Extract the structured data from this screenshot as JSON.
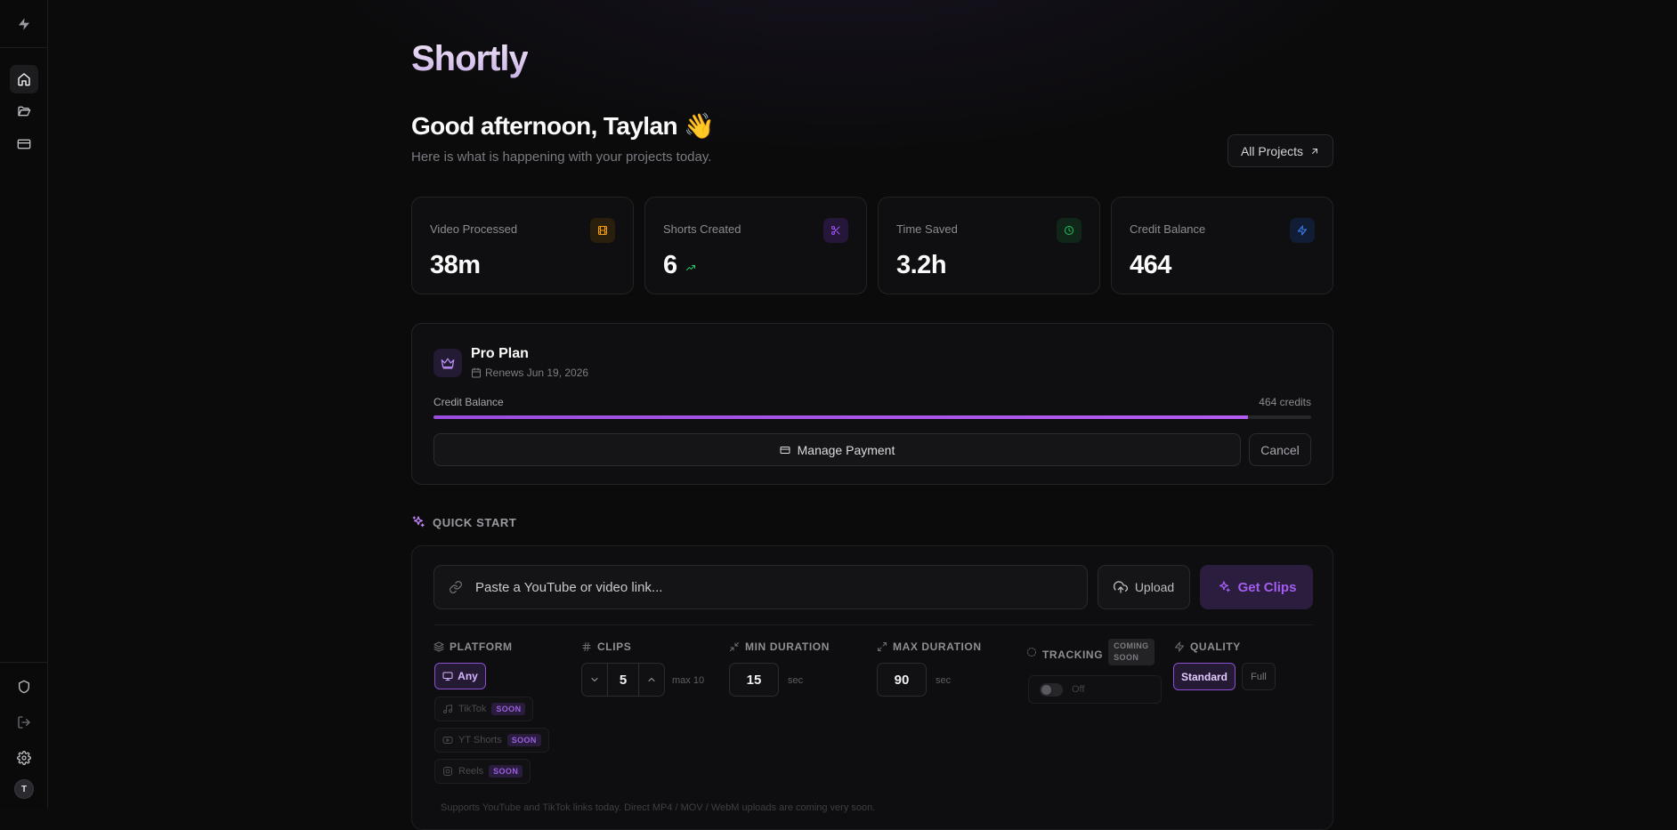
{
  "app": {
    "brand": "Shortly"
  },
  "sidebar": {
    "items": [
      {
        "name": "home",
        "icon": "home-icon",
        "active": true
      },
      {
        "name": "projects",
        "icon": "folder-open-icon",
        "active": false
      },
      {
        "name": "billing",
        "icon": "credit-card-icon",
        "active": false
      }
    ],
    "bottom": [
      {
        "name": "security",
        "icon": "shield-icon"
      },
      {
        "name": "logout",
        "icon": "log-out-icon"
      },
      {
        "name": "settings",
        "icon": "gear-icon"
      }
    ],
    "avatar_initial": "T"
  },
  "header": {
    "greeting": "Good afternoon, Taylan 👋",
    "subtitle": "Here is what is happening with your projects today.",
    "all_projects_label": "All Projects"
  },
  "stats": [
    {
      "label": "Video Processed",
      "value": "38m",
      "icon": "film-icon",
      "color": "#f59e0b"
    },
    {
      "label": "Shorts Created",
      "value": "6",
      "icon": "scissors-icon",
      "color": "#a855f7"
    },
    {
      "label": "Time Saved",
      "value": "3.2h",
      "icon": "clock-icon",
      "color": "#22c55e"
    },
    {
      "label": "Credit Balance",
      "value": "464",
      "icon": "zap-icon",
      "color": "#3b82f6"
    }
  ],
  "plan": {
    "title": "Pro Plan",
    "renews": "Renews Jun 19, 2026",
    "credit_label": "Credit Balance",
    "credits_text": "464 credits",
    "progress_fraction": 0.928,
    "manage_label": "Manage Payment",
    "cancel_label": "Cancel"
  },
  "quick_start": {
    "title": "QUICK START",
    "link_placeholder": "Paste a YouTube or video link...",
    "upload_label": "Upload",
    "get_clips_label": "Get Clips",
    "platform": {
      "label": "PLATFORM",
      "selected": "Any",
      "options": [
        {
          "label": "TikTok",
          "badge": "SOON"
        },
        {
          "label": "YT Shorts",
          "badge": "SOON"
        },
        {
          "label": "Reels",
          "badge": "SOON"
        }
      ]
    },
    "clips": {
      "label": "CLIPS",
      "value": "5",
      "hint": "max 10"
    },
    "min_duration": {
      "label": "MIN DURATION",
      "value": "15",
      "unit": "sec"
    },
    "max_duration": {
      "label": "MAX DURATION",
      "value": "90",
      "unit": "sec"
    },
    "tracking": {
      "label": "TRACKING",
      "badge_line1": "COMING",
      "badge_line2": "SOON",
      "state": "Off"
    },
    "quality": {
      "label": "QUALITY",
      "options": [
        "Standard",
        "Full"
      ],
      "selected": "Standard"
    },
    "footnote": "Supports YouTube and TikTok links today. Direct MP4 / MOV / WebM uploads are coming very soon."
  }
}
